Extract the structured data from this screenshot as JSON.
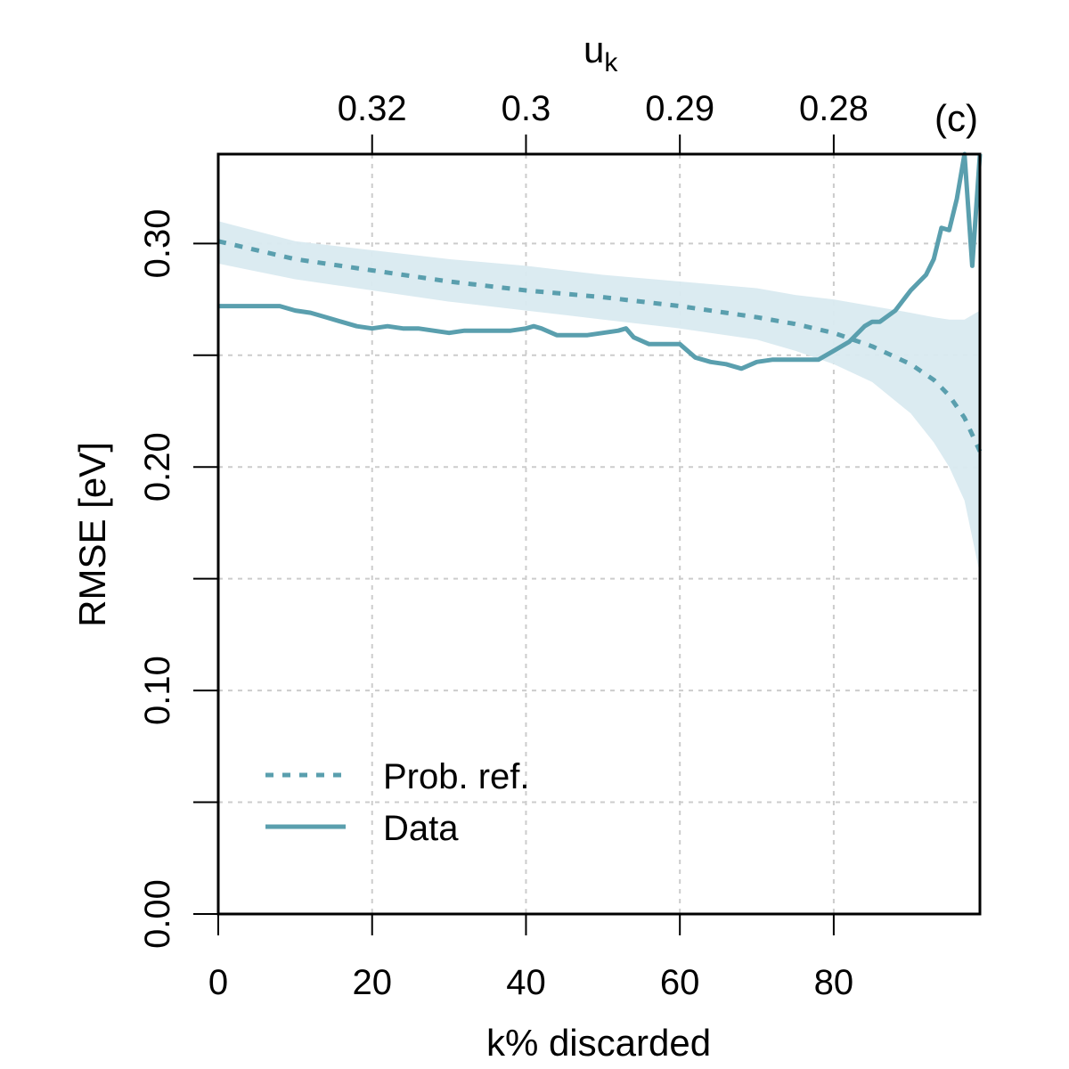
{
  "chart_data": {
    "type": "line",
    "panel_label": "(c)",
    "xlabel": "k% discarded",
    "ylabel": "RMSE [eV]",
    "top_axis_label": "u",
    "top_axis_label_sub": "k",
    "xlim": [
      0,
      99
    ],
    "ylim": [
      0,
      0.34
    ],
    "x_ticks": [
      0,
      20,
      40,
      60,
      80
    ],
    "x_tick_labels": [
      "0",
      "20",
      "40",
      "60",
      "80"
    ],
    "y_ticks": [
      0,
      0.05,
      0.1,
      0.15,
      0.2,
      0.25,
      0.3
    ],
    "y_tick_labels": [
      "0.00",
      "0.10",
      "0.20",
      "0.30"
    ],
    "y_labeled_ticks": [
      0,
      0.1,
      0.2,
      0.3
    ],
    "top_ticks": [
      20,
      40,
      60,
      80
    ],
    "top_tick_labels": [
      "0.32",
      "0.3",
      "0.29",
      "0.28"
    ],
    "grid": true,
    "legend": {
      "position": "bottom-left",
      "entries": [
        {
          "label": "Prob. ref.",
          "style": "dashed"
        },
        {
          "label": "Data",
          "style": "solid"
        }
      ]
    },
    "colors": {
      "line": "#5a9fae",
      "band": "#d9eaf0",
      "grid": "#cccccc",
      "axis": "#000000"
    },
    "series": [
      {
        "name": "Data",
        "style": "solid",
        "x": [
          0,
          2,
          4,
          6,
          8,
          10,
          12,
          14,
          16,
          18,
          20,
          22,
          24,
          26,
          28,
          30,
          32,
          34,
          36,
          38,
          40,
          41,
          42,
          44,
          46,
          48,
          50,
          52,
          53,
          54,
          56,
          58,
          60,
          62,
          64,
          66,
          68,
          70,
          72,
          74,
          76,
          78,
          80,
          82,
          84,
          85,
          86,
          88,
          90,
          92,
          93,
          94,
          95,
          96,
          97,
          98,
          99
        ],
        "y": [
          0.272,
          0.272,
          0.272,
          0.272,
          0.272,
          0.27,
          0.269,
          0.267,
          0.265,
          0.263,
          0.262,
          0.263,
          0.262,
          0.262,
          0.261,
          0.26,
          0.261,
          0.261,
          0.261,
          0.261,
          0.262,
          0.263,
          0.262,
          0.259,
          0.259,
          0.259,
          0.26,
          0.261,
          0.262,
          0.258,
          0.255,
          0.255,
          0.255,
          0.249,
          0.247,
          0.246,
          0.244,
          0.247,
          0.248,
          0.248,
          0.248,
          0.248,
          0.252,
          0.256,
          0.263,
          0.265,
          0.265,
          0.27,
          0.279,
          0.286,
          0.293,
          0.307,
          0.306,
          0.32,
          0.34,
          0.29,
          0.34
        ]
      },
      {
        "name": "Prob. ref.",
        "style": "dashed",
        "x": [
          0,
          10,
          20,
          30,
          40,
          50,
          60,
          70,
          75,
          80,
          85,
          90,
          93,
          95,
          97,
          99
        ],
        "y": [
          0.301,
          0.293,
          0.288,
          0.283,
          0.279,
          0.276,
          0.272,
          0.267,
          0.264,
          0.26,
          0.254,
          0.246,
          0.239,
          0.232,
          0.222,
          0.207
        ]
      }
    ],
    "band": {
      "name": "Prob. ref. interval",
      "x": [
        0,
        10,
        20,
        30,
        40,
        50,
        60,
        70,
        75,
        80,
        85,
        90,
        93,
        95,
        97,
        99
      ],
      "upper": [
        0.31,
        0.301,
        0.297,
        0.293,
        0.29,
        0.286,
        0.283,
        0.28,
        0.277,
        0.275,
        0.272,
        0.269,
        0.267,
        0.266,
        0.266,
        0.27
      ],
      "lower": [
        0.291,
        0.284,
        0.279,
        0.274,
        0.27,
        0.266,
        0.262,
        0.257,
        0.252,
        0.246,
        0.238,
        0.224,
        0.211,
        0.2,
        0.185,
        0.152
      ]
    }
  }
}
